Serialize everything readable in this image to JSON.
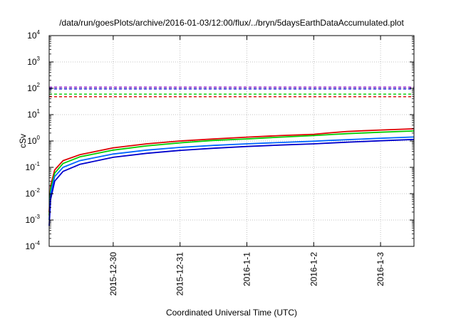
{
  "chart_data": {
    "type": "line",
    "title": "/data/run/goesPlots/archive/2016-01-03/12:00/flux/../bryn/5daysEarthDataAccumulated.plot",
    "xlabel": "Coordinated Universal Time (UTC)",
    "ylabel": "cSv",
    "x_start": "2015-12-29T01:00",
    "x_end": "2016-01-03T12:00",
    "yscale": "log",
    "ylim": [
      0.0001,
      10000
    ],
    "grid": true,
    "x_ticks": [
      {
        "label": "2015-12-30",
        "x": "2015-12-30T00:00"
      },
      {
        "label": "2015-12-31",
        "x": "2015-12-31T00:00"
      },
      {
        "label": "2016-1-1",
        "x": "2016-01-01T00:00"
      },
      {
        "label": "2016-1-2",
        "x": "2016-01-02T00:00"
      },
      {
        "label": "2016-1-3",
        "x": "2016-01-03T00:00"
      }
    ],
    "y_ticks": [
      {
        "base": "10",
        "exp": "-4",
        "value": 0.0001
      },
      {
        "base": "10",
        "exp": "-3",
        "value": 0.001
      },
      {
        "base": "10",
        "exp": "-2",
        "value": 0.01
      },
      {
        "base": "10",
        "exp": "-1",
        "value": 0.1
      },
      {
        "base": "10",
        "exp": "0",
        "value": 1
      },
      {
        "base": "10",
        "exp": "1",
        "value": 10
      },
      {
        "base": "10",
        "exp": "2",
        "value": 100
      },
      {
        "base": "10",
        "exp": "3",
        "value": 1000
      },
      {
        "base": "10",
        "exp": "4",
        "value": 10000
      }
    ],
    "thresholds": [
      {
        "color": "#8000c0",
        "value": 110
      },
      {
        "color": "#0000cc",
        "value": 95
      },
      {
        "color": "#00cc00",
        "value": 60
      },
      {
        "color": "#dd0000",
        "value": 48
      }
    ],
    "series": [
      {
        "color": "#dd0000",
        "x": [
          "2015-12-29T01:00",
          "2015-12-29T01:30",
          "2015-12-29T03:00",
          "2015-12-29T06:00",
          "2015-12-29T12:00",
          "2015-12-30T00:00",
          "2015-12-30T12:00",
          "2015-12-31T00:00",
          "2015-12-31T12:00",
          "2016-01-01T00:00",
          "2016-01-01T12:00",
          "2016-01-02T00:00",
          "2016-01-02T06:00",
          "2016-01-02T12:00",
          "2016-01-03T00:00",
          "2016-01-03T12:00"
        ],
        "y": [
          0.002,
          0.02,
          0.08,
          0.18,
          0.3,
          0.55,
          0.78,
          1.0,
          1.2,
          1.4,
          1.6,
          1.8,
          2.05,
          2.3,
          2.6,
          2.9
        ]
      },
      {
        "color": "#00cc00",
        "x": [
          "2015-12-29T01:00",
          "2015-12-29T01:30",
          "2015-12-29T03:00",
          "2015-12-29T06:00",
          "2015-12-29T12:00",
          "2015-12-30T00:00",
          "2015-12-30T12:00",
          "2015-12-31T00:00",
          "2015-12-31T12:00",
          "2016-01-01T00:00",
          "2016-01-01T12:00",
          "2016-01-02T00:00",
          "2016-01-02T06:00",
          "2016-01-02T12:00",
          "2016-01-03T00:00",
          "2016-01-03T12:00"
        ],
        "y": [
          0.0015,
          0.015,
          0.06,
          0.14,
          0.25,
          0.45,
          0.65,
          0.85,
          1.05,
          1.2,
          1.4,
          1.6,
          1.75,
          1.9,
          2.15,
          2.4
        ]
      },
      {
        "color": "#0066ff",
        "x": [
          "2015-12-29T01:00",
          "2015-12-29T01:30",
          "2015-12-29T03:00",
          "2015-12-29T06:00",
          "2015-12-29T12:00",
          "2015-12-30T00:00",
          "2015-12-30T12:00",
          "2015-12-31T00:00",
          "2015-12-31T12:00",
          "2016-01-01T00:00",
          "2016-01-01T12:00",
          "2016-01-02T00:00",
          "2016-01-02T06:00",
          "2016-01-02T12:00",
          "2016-01-03T00:00",
          "2016-01-03T12:00"
        ],
        "y": [
          0.001,
          0.01,
          0.045,
          0.1,
          0.18,
          0.32,
          0.45,
          0.57,
          0.68,
          0.78,
          0.88,
          0.98,
          1.05,
          1.12,
          1.27,
          1.42
        ]
      },
      {
        "color": "#0000cc",
        "x": [
          "2015-12-29T01:00",
          "2015-12-29T01:30",
          "2015-12-29T03:00",
          "2015-12-29T06:00",
          "2015-12-29T12:00",
          "2015-12-30T00:00",
          "2015-12-30T12:00",
          "2015-12-31T00:00",
          "2015-12-31T12:00",
          "2016-01-01T00:00",
          "2016-01-01T12:00",
          "2016-01-02T00:00",
          "2016-01-02T06:00",
          "2016-01-02T12:00",
          "2016-01-03T00:00",
          "2016-01-03T12:00"
        ],
        "y": [
          0.0006,
          0.006,
          0.03,
          0.07,
          0.13,
          0.24,
          0.34,
          0.44,
          0.53,
          0.62,
          0.7,
          0.78,
          0.84,
          0.9,
          1.02,
          1.15
        ]
      }
    ]
  }
}
